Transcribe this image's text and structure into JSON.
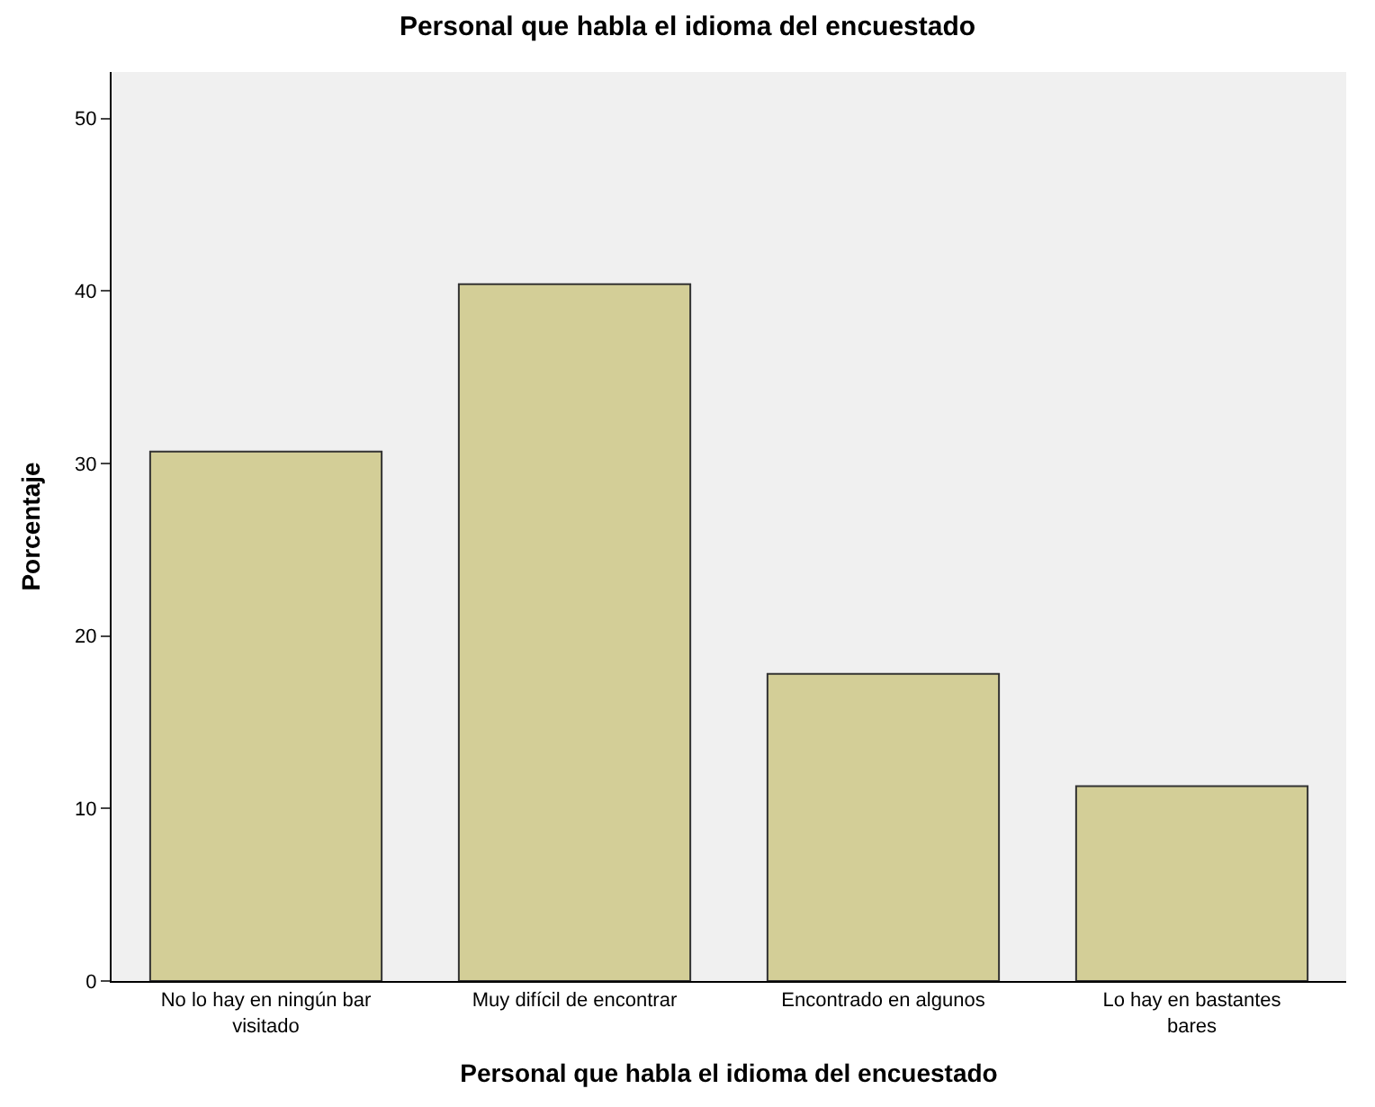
{
  "chart_data": {
    "type": "bar",
    "title": "Personal que habla el idioma del encuestado",
    "xlabel": "Personal que habla el idioma del encuestado",
    "ylabel": "Porcentaje",
    "categories": [
      "No lo hay en ningún bar visitado",
      "Muy difícil de encontrar",
      "Encontrado en algunos",
      "Lo hay en bastantes bares"
    ],
    "values": [
      30.7,
      40.4,
      17.8,
      11.3
    ],
    "color": "#d3ce97",
    "ylim": [
      0,
      52.7
    ],
    "yticks": [
      0,
      10,
      20,
      30,
      40,
      50
    ]
  }
}
